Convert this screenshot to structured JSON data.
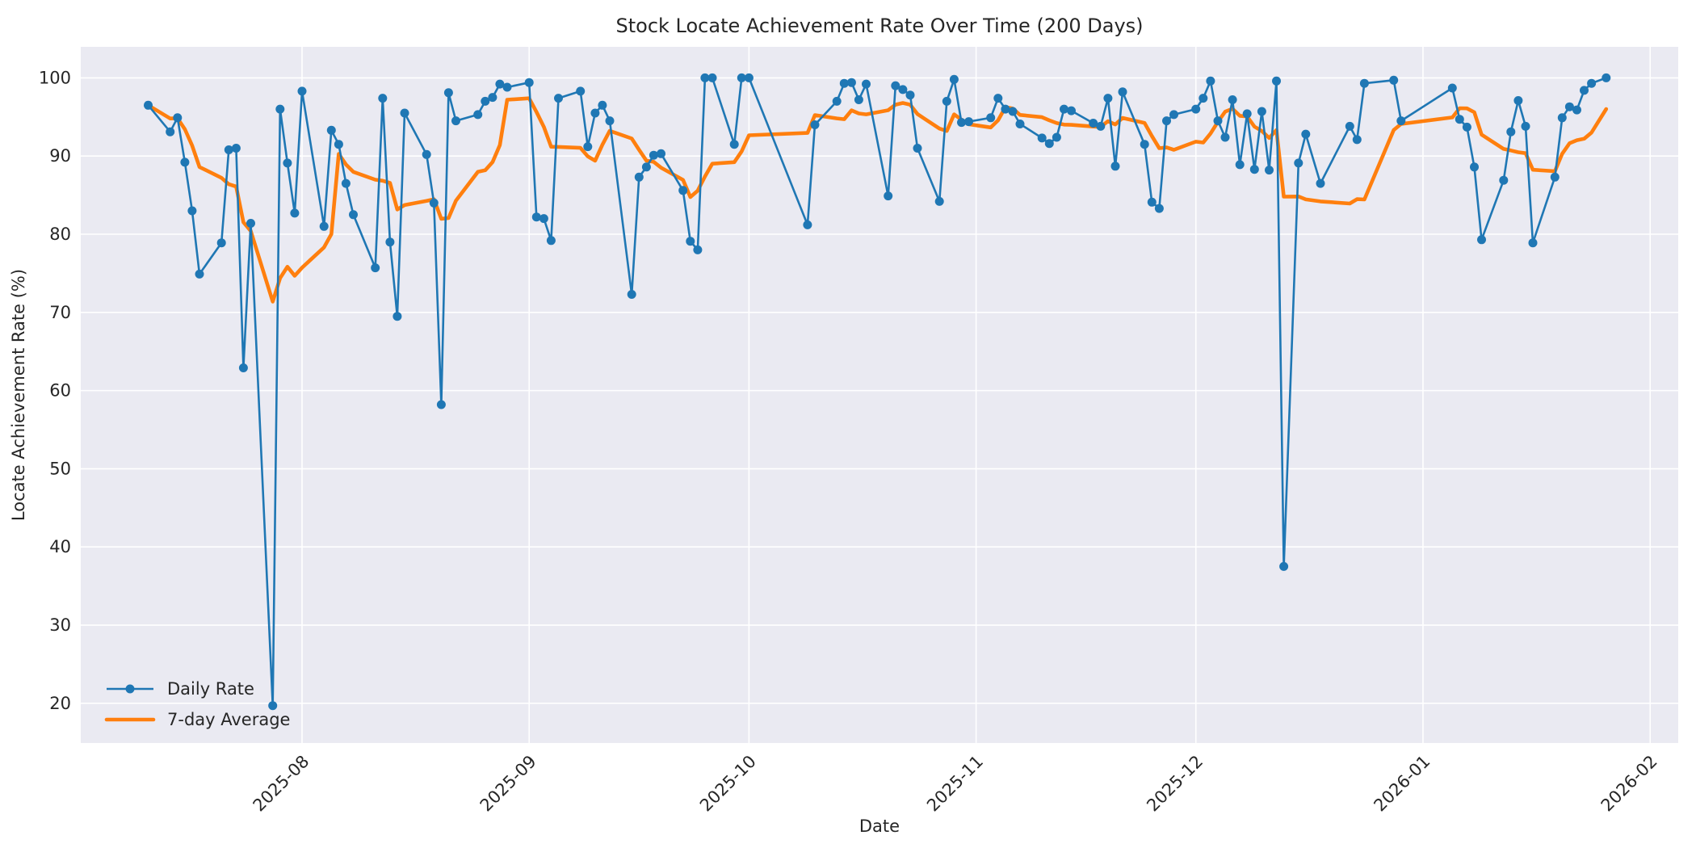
{
  "chart_data": {
    "type": "line",
    "title": "Stock Locate Achievement Rate Over Time (200 Days)",
    "xlabel": "Date",
    "ylabel": "Locate Achievement Rate (%)",
    "legend_position": "lower left",
    "grid": true,
    "background_color": "#eaeaf2",
    "gridline_color": "#ffffff",
    "text_color": "#262626",
    "ylim": [
      15.7,
      104.0
    ],
    "y_ticks": [
      20,
      30,
      40,
      50,
      60,
      70,
      80,
      90,
      100
    ],
    "x_ticks": [
      "2025-08",
      "2025-09",
      "2025-10",
      "2025-11",
      "2025-12",
      "2026-01",
      "2026-02"
    ],
    "series": [
      {
        "name": "Daily Rate",
        "color": "#1f77b4",
        "marker": "circle",
        "line_width": 2.6,
        "points": [
          [
            "2025-07-11",
            96.5
          ],
          [
            "2025-07-14",
            93.1
          ],
          [
            "2025-07-15",
            94.9
          ],
          [
            "2025-07-16",
            89.2
          ],
          [
            "2025-07-17",
            83.0
          ],
          [
            "2025-07-18",
            74.9
          ],
          [
            "2025-07-21",
            78.9
          ],
          [
            "2025-07-22",
            90.8
          ],
          [
            "2025-07-23",
            91.0
          ],
          [
            "2025-07-24",
            62.9
          ],
          [
            "2025-07-25",
            81.4
          ],
          [
            "2025-07-28",
            19.7
          ],
          [
            "2025-07-29",
            96.0
          ],
          [
            "2025-07-30",
            89.1
          ],
          [
            "2025-07-31",
            82.7
          ],
          [
            "2025-08-01",
            98.3
          ],
          [
            "2025-08-04",
            81.0
          ],
          [
            "2025-08-05",
            93.3
          ],
          [
            "2025-08-06",
            91.5
          ],
          [
            "2025-08-07",
            86.5
          ],
          [
            "2025-08-08",
            82.5
          ],
          [
            "2025-08-11",
            75.7
          ],
          [
            "2025-08-12",
            97.4
          ],
          [
            "2025-08-13",
            79.0
          ],
          [
            "2025-08-14",
            69.5
          ],
          [
            "2025-08-15",
            95.5
          ],
          [
            "2025-08-18",
            90.2
          ],
          [
            "2025-08-19",
            84.0
          ],
          [
            "2025-08-20",
            58.2
          ],
          [
            "2025-08-21",
            98.1
          ],
          [
            "2025-08-22",
            94.5
          ],
          [
            "2025-08-25",
            95.3
          ],
          [
            "2025-08-26",
            97.0
          ],
          [
            "2025-08-27",
            97.5
          ],
          [
            "2025-08-28",
            99.2
          ],
          [
            "2025-08-29",
            98.8
          ],
          [
            "2025-09-01",
            99.4
          ],
          [
            "2025-09-02",
            82.2
          ],
          [
            "2025-09-03",
            82.0
          ],
          [
            "2025-09-04",
            79.2
          ],
          [
            "2025-09-05",
            97.4
          ],
          [
            "2025-09-08",
            98.3
          ],
          [
            "2025-09-09",
            91.2
          ],
          [
            "2025-09-10",
            95.5
          ],
          [
            "2025-09-11",
            96.5
          ],
          [
            "2025-09-12",
            94.5
          ],
          [
            "2025-09-15",
            72.3
          ],
          [
            "2025-09-16",
            87.3
          ],
          [
            "2025-09-17",
            88.6
          ],
          [
            "2025-09-18",
            90.1
          ],
          [
            "2025-09-19",
            90.3
          ],
          [
            "2025-09-22",
            85.6
          ],
          [
            "2025-09-23",
            79.1
          ],
          [
            "2025-09-24",
            78.0
          ],
          [
            "2025-09-25",
            100.0
          ],
          [
            "2025-09-26",
            100.0
          ],
          [
            "2025-09-29",
            91.5
          ],
          [
            "2025-09-30",
            100.0
          ],
          [
            "2025-10-01",
            100.0
          ],
          [
            "2025-10-09",
            81.2
          ],
          [
            "2025-10-10",
            94.0
          ],
          [
            "2025-10-13",
            97.0
          ],
          [
            "2025-10-14",
            99.3
          ],
          [
            "2025-10-15",
            99.4
          ],
          [
            "2025-10-16",
            97.2
          ],
          [
            "2025-10-17",
            99.2
          ],
          [
            "2025-10-20",
            84.9
          ],
          [
            "2025-10-21",
            99.0
          ],
          [
            "2025-10-22",
            98.5
          ],
          [
            "2025-10-23",
            97.8
          ],
          [
            "2025-10-24",
            91.0
          ],
          [
            "2025-10-27",
            84.2
          ],
          [
            "2025-10-28",
            97.0
          ],
          [
            "2025-10-29",
            99.8
          ],
          [
            "2025-10-30",
            94.3
          ],
          [
            "2025-10-31",
            94.4
          ],
          [
            "2025-11-03",
            94.9
          ],
          [
            "2025-11-04",
            97.4
          ],
          [
            "2025-11-05",
            96.0
          ],
          [
            "2025-11-06",
            95.7
          ],
          [
            "2025-11-07",
            94.1
          ],
          [
            "2025-11-10",
            92.3
          ],
          [
            "2025-11-11",
            91.6
          ],
          [
            "2025-11-12",
            92.4
          ],
          [
            "2025-11-13",
            96.0
          ],
          [
            "2025-11-14",
            95.8
          ],
          [
            "2025-11-17",
            94.2
          ],
          [
            "2025-11-18",
            93.8
          ],
          [
            "2025-11-19",
            97.4
          ],
          [
            "2025-11-20",
            88.7
          ],
          [
            "2025-11-21",
            98.2
          ],
          [
            "2025-11-24",
            91.5
          ],
          [
            "2025-11-25",
            84.1
          ],
          [
            "2025-11-26",
            83.3
          ],
          [
            "2025-11-27",
            94.5
          ],
          [
            "2025-11-28",
            95.3
          ],
          [
            "2025-12-01",
            96.0
          ],
          [
            "2025-12-02",
            97.4
          ],
          [
            "2025-12-03",
            99.6
          ],
          [
            "2025-12-04",
            94.5
          ],
          [
            "2025-12-05",
            92.4
          ],
          [
            "2025-12-06",
            97.2
          ],
          [
            "2025-12-07",
            88.9
          ],
          [
            "2025-12-08",
            95.4
          ],
          [
            "2025-12-09",
            88.3
          ],
          [
            "2025-12-10",
            95.7
          ],
          [
            "2025-12-11",
            88.2
          ],
          [
            "2025-12-12",
            99.6
          ],
          [
            "2025-12-13",
            37.5
          ],
          [
            "2025-12-15",
            89.1
          ],
          [
            "2025-12-16",
            92.8
          ],
          [
            "2025-12-18",
            86.5
          ],
          [
            "2025-12-22",
            93.8
          ],
          [
            "2025-12-23",
            92.1
          ],
          [
            "2025-12-24",
            99.3
          ],
          [
            "2025-12-28",
            99.7
          ],
          [
            "2025-12-29",
            94.5
          ],
          [
            "2026-01-05",
            98.7
          ],
          [
            "2026-01-06",
            94.7
          ],
          [
            "2026-01-07",
            93.7
          ],
          [
            "2026-01-08",
            88.6
          ],
          [
            "2026-01-09",
            79.3
          ],
          [
            "2026-01-12",
            86.9
          ],
          [
            "2026-01-13",
            93.1
          ],
          [
            "2026-01-14",
            97.1
          ],
          [
            "2026-01-15",
            93.8
          ],
          [
            "2026-01-16",
            78.9
          ],
          [
            "2026-01-19",
            87.3
          ],
          [
            "2026-01-20",
            94.9
          ],
          [
            "2026-01-21",
            96.3
          ],
          [
            "2026-01-22",
            95.9
          ],
          [
            "2026-01-23",
            98.4
          ],
          [
            "2026-01-24",
            99.3
          ],
          [
            "2026-01-26",
            100.0
          ]
        ]
      },
      {
        "name": "7-day Average",
        "color": "#ff7f0e",
        "marker": "none",
        "line_width": 4.6,
        "derived": "rolling mean of last 7 observations of Daily Rate (min 1)"
      }
    ]
  },
  "legend": {
    "daily_label": "Daily Rate",
    "avg_label": "7-day Average"
  }
}
